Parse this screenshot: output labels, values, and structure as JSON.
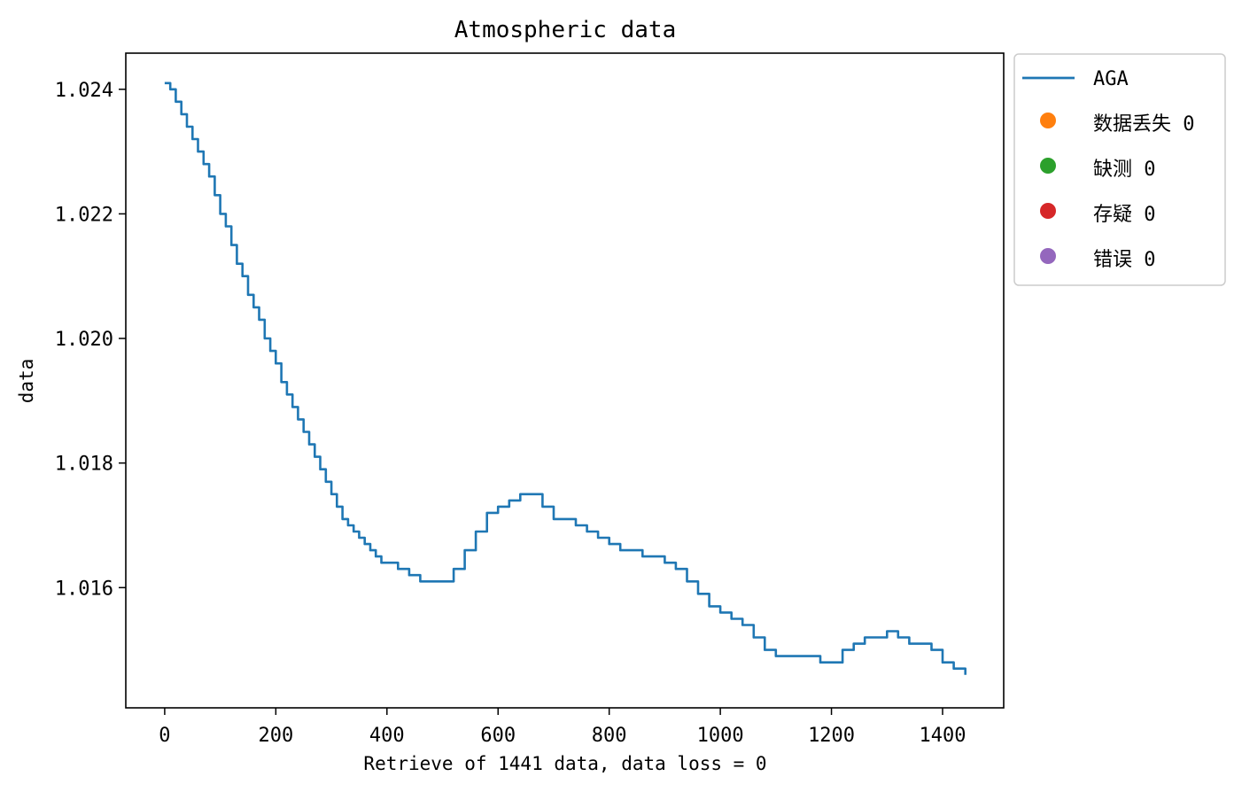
{
  "chart_data": {
    "type": "line",
    "title": "Atmospheric data",
    "xlabel": "Retrieve of 1441 data, data loss = 0",
    "ylabel": "data",
    "xlim": [
      -70,
      1510
    ],
    "ylim": [
      1.01407,
      1.02458
    ],
    "x_ticks": [
      0,
      200,
      400,
      600,
      800,
      1000,
      1200,
      1400
    ],
    "x_tick_labels": [
      "0",
      "200",
      "400",
      "600",
      "800",
      "1000",
      "1200",
      "1400"
    ],
    "y_ticks": [
      1.016,
      1.018,
      1.02,
      1.022,
      1.024
    ],
    "y_tick_labels": [
      "1.016",
      "1.018",
      "1.020",
      "1.022",
      "1.024"
    ],
    "grid": false,
    "legend_position": "outside-upper-right",
    "series": [
      {
        "name": "AGA",
        "color": "#1f77b4",
        "style": "line",
        "x": [
          0,
          10,
          20,
          30,
          40,
          50,
          60,
          70,
          80,
          90,
          100,
          110,
          120,
          130,
          140,
          150,
          160,
          170,
          180,
          190,
          200,
          210,
          220,
          230,
          240,
          250,
          260,
          270,
          280,
          290,
          300,
          310,
          320,
          330,
          340,
          350,
          360,
          370,
          380,
          390,
          400,
          420,
          440,
          460,
          480,
          500,
          520,
          540,
          560,
          580,
          600,
          620,
          640,
          660,
          680,
          700,
          720,
          740,
          760,
          780,
          800,
          820,
          840,
          860,
          880,
          900,
          920,
          940,
          960,
          980,
          1000,
          1020,
          1040,
          1060,
          1080,
          1100,
          1120,
          1140,
          1160,
          1180,
          1200,
          1220,
          1240,
          1260,
          1280,
          1300,
          1320,
          1340,
          1360,
          1380,
          1400,
          1420,
          1441
        ],
        "y": [
          1.0241,
          1.024,
          1.0238,
          1.0236,
          1.0234,
          1.0232,
          1.023,
          1.0228,
          1.0226,
          1.0223,
          1.022,
          1.0218,
          1.0215,
          1.0212,
          1.021,
          1.0207,
          1.0205,
          1.0203,
          1.02,
          1.0198,
          1.0196,
          1.0193,
          1.0191,
          1.0189,
          1.0187,
          1.0185,
          1.0183,
          1.0181,
          1.0179,
          1.0177,
          1.0175,
          1.0173,
          1.0171,
          1.017,
          1.0169,
          1.0168,
          1.0167,
          1.0166,
          1.0165,
          1.0164,
          1.0164,
          1.0163,
          1.0162,
          1.0161,
          1.0161,
          1.0161,
          1.0163,
          1.0166,
          1.0169,
          1.0172,
          1.0173,
          1.0174,
          1.0175,
          1.0175,
          1.0173,
          1.0171,
          1.0171,
          1.017,
          1.0169,
          1.0168,
          1.0167,
          1.0166,
          1.0166,
          1.0165,
          1.0165,
          1.0164,
          1.0163,
          1.0161,
          1.0159,
          1.0157,
          1.0156,
          1.0155,
          1.0154,
          1.0152,
          1.015,
          1.0149,
          1.0149,
          1.0149,
          1.0149,
          1.0148,
          1.0148,
          1.015,
          1.0151,
          1.0152,
          1.0152,
          1.0153,
          1.0152,
          1.0151,
          1.0151,
          1.015,
          1.0148,
          1.0147,
          1.0146
        ]
      },
      {
        "name": "数据丢失 0",
        "color": "#ff7f0e",
        "style": "marker",
        "x": [],
        "y": []
      },
      {
        "name": "缺测 0",
        "color": "#2ca02c",
        "style": "marker",
        "x": [],
        "y": []
      },
      {
        "name": "存疑 0",
        "color": "#d62728",
        "style": "marker",
        "x": [],
        "y": []
      },
      {
        "name": "错误 0",
        "color": "#9467bd",
        "style": "marker",
        "x": [],
        "y": []
      }
    ]
  }
}
